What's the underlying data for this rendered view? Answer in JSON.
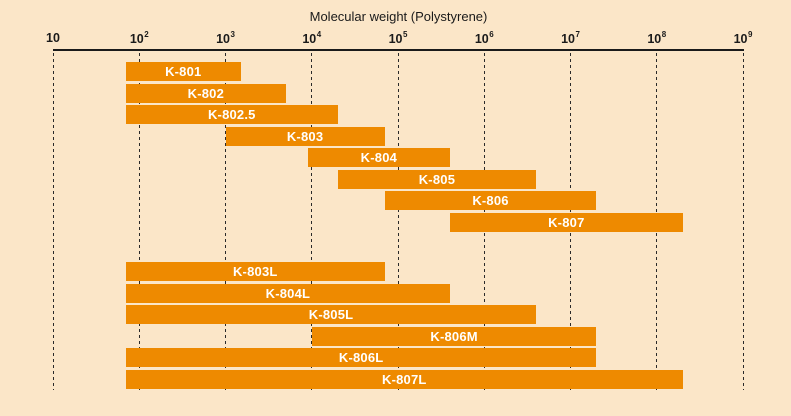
{
  "colors": {
    "background": "#FBE6C8",
    "bar": "#EE8A00",
    "axis": "#1A1A1A",
    "bar_label": "#FFFFFF"
  },
  "chart_data": {
    "type": "bar",
    "subtype": "horizontal-range-bars",
    "scale": "log10",
    "axis": {
      "title": "Molecular weight (Polystyrene)",
      "position": "top",
      "min": 10,
      "max": 1000000000,
      "gridlines": "dashed-vertical"
    },
    "x_ticks": [
      {
        "text": "10",
        "sup": "",
        "exp": 1
      },
      {
        "text": "10",
        "sup": "2",
        "exp": 2
      },
      {
        "text": "10",
        "sup": "3",
        "exp": 3
      },
      {
        "text": "10",
        "sup": "4",
        "exp": 4
      },
      {
        "text": "10",
        "sup": "5",
        "exp": 5
      },
      {
        "text": "10",
        "sup": "6",
        "exp": 6
      },
      {
        "text": "10",
        "sup": "7",
        "exp": 7
      },
      {
        "text": "10",
        "sup": "8",
        "exp": 8
      },
      {
        "text": "10",
        "sup": "9",
        "exp": 9
      }
    ],
    "bars": [
      {
        "label": "K-801",
        "group": 0,
        "min": 70,
        "max": 1500
      },
      {
        "label": "K-802",
        "group": 0,
        "min": 70,
        "max": 5000
      },
      {
        "label": "K-802.5",
        "group": 0,
        "min": 70,
        "max": 20000
      },
      {
        "label": "K-803",
        "group": 0,
        "min": 1000,
        "max": 70000
      },
      {
        "label": "K-804",
        "group": 0,
        "min": 9000,
        "max": 400000
      },
      {
        "label": "K-805",
        "group": 0,
        "min": 20000,
        "max": 4000000
      },
      {
        "label": "K-806",
        "group": 0,
        "min": 70000,
        "max": 20000000
      },
      {
        "label": "K-807",
        "group": 0,
        "min": 400000,
        "max": 200000000
      },
      {
        "label": "K-803L",
        "group": 1,
        "min": 70,
        "max": 70000
      },
      {
        "label": "K-804L",
        "group": 1,
        "min": 70,
        "max": 400000
      },
      {
        "label": "K-805L",
        "group": 1,
        "min": 70,
        "max": 4000000
      },
      {
        "label": "K-806M",
        "group": 1,
        "min": 10000,
        "max": 20000000
      },
      {
        "label": "K-806L",
        "group": 1,
        "min": 70,
        "max": 20000000
      },
      {
        "label": "K-807L",
        "group": 1,
        "min": 70,
        "max": 200000000
      }
    ]
  }
}
